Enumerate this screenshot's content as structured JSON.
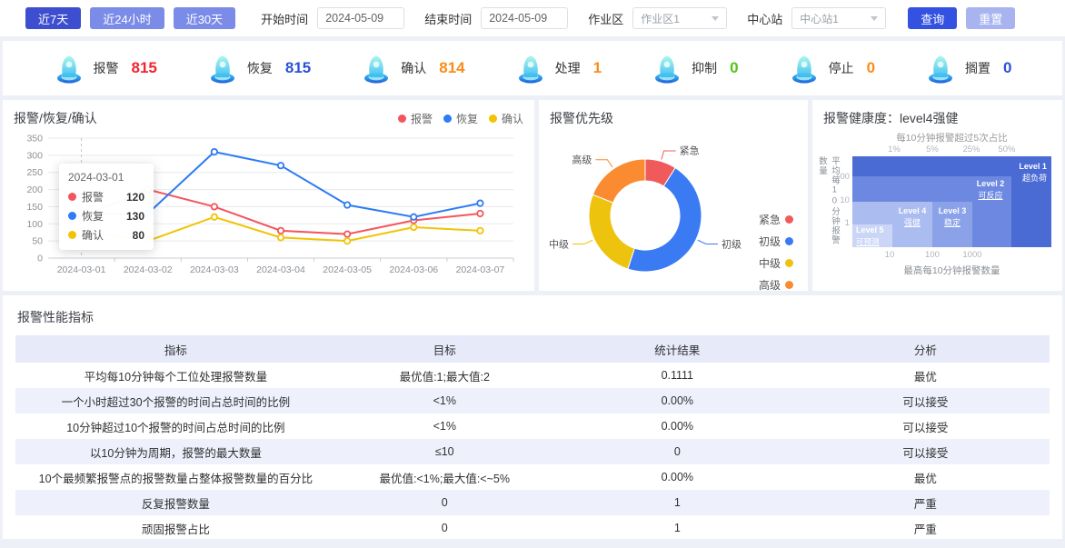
{
  "toolbar": {
    "quick_ranges": [
      "近7天",
      "近24小时",
      "近30天"
    ],
    "active_range": "近7天",
    "start_label": "开始时间",
    "start_value": "2024-05-09",
    "end_label": "结束时间",
    "end_value": "2024-05-09",
    "area_label": "作业区",
    "area_value": "作业区1",
    "station_label": "中心站",
    "station_value": "中心站1",
    "query_label": "查询",
    "reset_label": "重置"
  },
  "stats": [
    {
      "label": "报警",
      "value": "815",
      "color": "#f5222d"
    },
    {
      "label": "恢复",
      "value": "815",
      "color": "#2b50d9"
    },
    {
      "label": "确认",
      "value": "814",
      "color": "#fa8c16"
    },
    {
      "label": "处理",
      "value": "1",
      "color": "#fa8c16"
    },
    {
      "label": "抑制",
      "value": "0",
      "color": "#52c41a"
    },
    {
      "label": "停止",
      "value": "0",
      "color": "#fa8c16"
    },
    {
      "label": "搁置",
      "value": "0",
      "color": "#2b50d9"
    }
  ],
  "chart_data": [
    {
      "type": "line",
      "title": "报警/恢复/确认",
      "categories": [
        "2024-03-01",
        "2024-03-02",
        "2024-03-03",
        "2024-03-04",
        "2024-03-05",
        "2024-03-06",
        "2024-03-07"
      ],
      "series": [
        {
          "name": "报警",
          "color": "#f4555c",
          "values": [
            120,
            200,
            150,
            80,
            70,
            110,
            130
          ]
        },
        {
          "name": "恢复",
          "color": "#2d7bf5",
          "values": [
            130,
            130,
            310,
            270,
            155,
            120,
            160
          ]
        },
        {
          "name": "确认",
          "color": "#f2c303",
          "values": [
            80,
            50,
            120,
            60,
            50,
            90,
            80
          ]
        }
      ],
      "ylim": [
        0,
        350
      ],
      "ytick_step": 50,
      "grid": true,
      "legend_position": "top-right",
      "tooltip": {
        "date": "2024-03-01",
        "rows": [
          {
            "name": "报警",
            "value": "120"
          },
          {
            "name": "恢复",
            "value": "130"
          },
          {
            "name": "确认",
            "value": "80"
          }
        ]
      }
    },
    {
      "type": "pie",
      "title": "报警优先级",
      "segments": [
        {
          "name": "紧急",
          "percent": 9,
          "color": "#f15a5a"
        },
        {
          "name": "初级",
          "percent": 46,
          "color": "#3a7bf4"
        },
        {
          "name": "中级",
          "percent": 26,
          "color": "#eec30d"
        },
        {
          "name": "高级",
          "percent": 19,
          "color": "#fa8b31"
        }
      ],
      "legend_position": "right",
      "inner_radius_ratio": 0.61
    },
    {
      "type": "heatmap",
      "title": "报警健康度：level4强健",
      "current_level": "level4强健",
      "top_axis": {
        "label": "每10分钟报警超过5次占比",
        "ticks": [
          "1%",
          "5%",
          "25%",
          "50%"
        ]
      },
      "left_axis": {
        "label": "平均每10分钟报警数量",
        "ticks": [
          "100",
          "10",
          "1"
        ]
      },
      "bottom_axis": {
        "label": "最高每10分钟报警数量",
        "ticks": [
          "10",
          "100",
          "1000"
        ]
      },
      "levels": [
        {
          "name": "Level 1",
          "desc": "超负荷",
          "color": "#4a6ad4"
        },
        {
          "name": "Level 2",
          "desc": "可反应",
          "color": "#6d88e1"
        },
        {
          "name": "Level 3",
          "desc": "稳定",
          "color": "#8ba2e9"
        },
        {
          "name": "Level 4",
          "desc": "强健",
          "color": "#abbcf0"
        },
        {
          "name": "Level 5",
          "desc": "可预测",
          "color": "#cbd6f7"
        }
      ]
    }
  ],
  "table": {
    "section_title": "报警性能指标",
    "headers": [
      "指标",
      "目标",
      "统计结果",
      "分析"
    ],
    "rows": [
      [
        "平均每10分钟每个工位处理报警数量",
        "最优值:1;最大值:2",
        "0.1111",
        "最优"
      ],
      [
        "一个小时超过30个报警的时间占总时间的比例",
        "<1%",
        "0.00%",
        "可以接受"
      ],
      [
        "10分钟超过10个报警的时间占总时间的比例",
        "<1%",
        "0.00%",
        "可以接受"
      ],
      [
        "以10分钟为周期，报警的最大数量",
        "≤10",
        "0",
        "可以接受"
      ],
      [
        "10个最频繁报警点的报警数量占整体报警数量的百分比",
        "最优值:<1%;最大值:<~5%",
        "0.00%",
        "最优"
      ],
      [
        "反复报警数量",
        "0",
        "1",
        "严重"
      ],
      [
        "顽固报警占比",
        "0",
        "1",
        "严重"
      ]
    ]
  }
}
